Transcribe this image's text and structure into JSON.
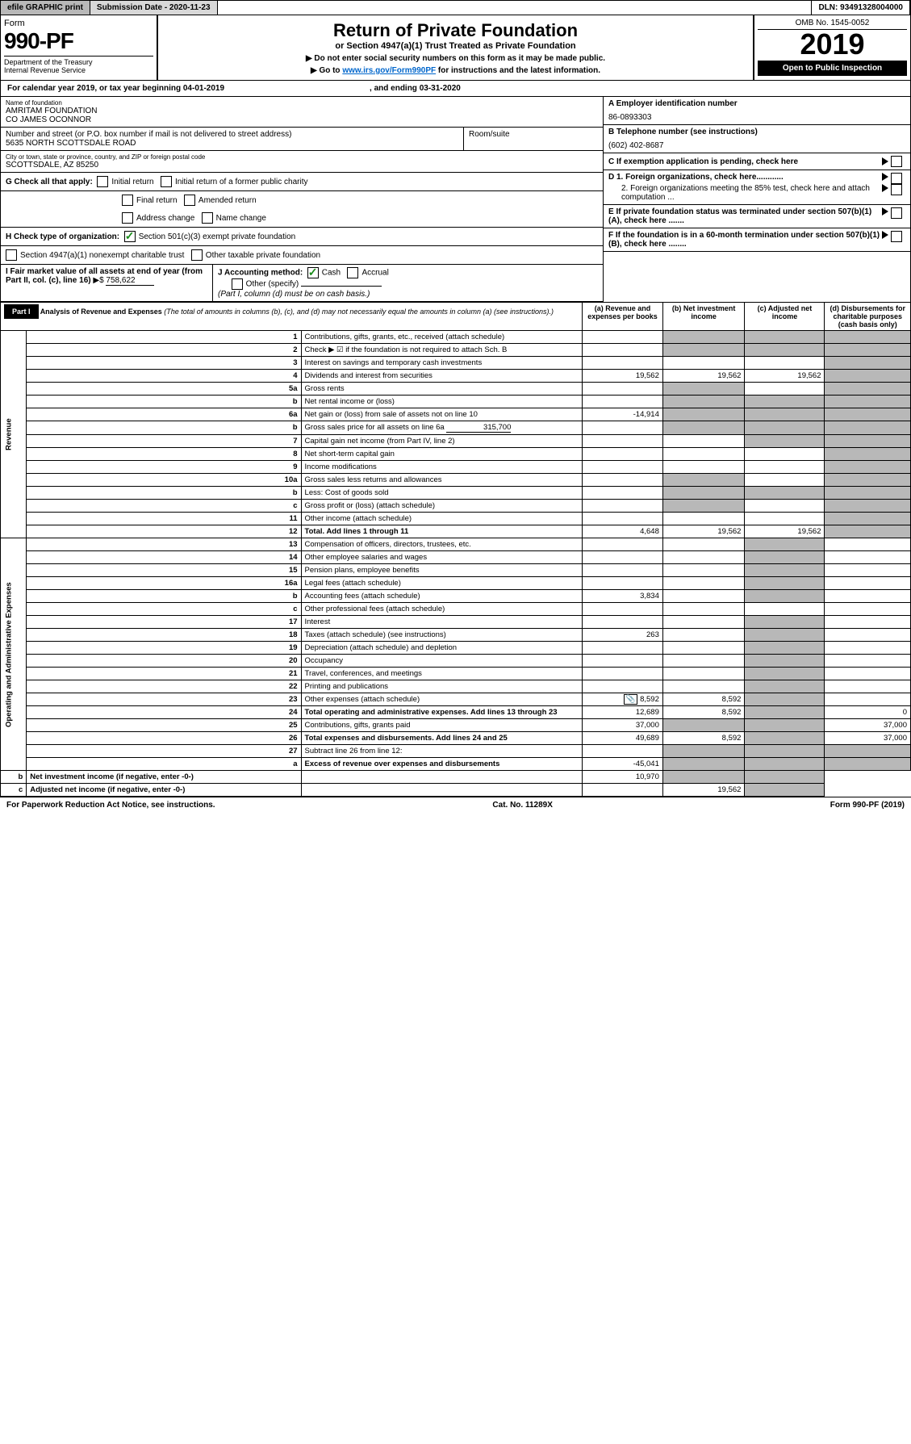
{
  "topbar": {
    "efile": "efile GRAPHIC print",
    "subdate_lbl": "Submission Date - 2020-11-23",
    "dln": "DLN: 93491328004000"
  },
  "header": {
    "form_lbl": "Form",
    "form_num": "990-PF",
    "dept": "Department of the Treasury",
    "irs": "Internal Revenue Service",
    "title": "Return of Private Foundation",
    "sub": "or Section 4947(a)(1) Trust Treated as Private Foundation",
    "note1": "▶ Do not enter social security numbers on this form as it may be made public.",
    "note2_pre": "▶ Go to ",
    "note2_link": "www.irs.gov/Form990PF",
    "note2_post": " for instructions and the latest information.",
    "omb": "OMB No. 1545-0052",
    "year": "2019",
    "open": "Open to Public Inspection"
  },
  "calyear": {
    "pre": "For calendar year 2019, or tax year beginning 04-01-2019",
    "post": ", and ending 03-31-2020"
  },
  "entity": {
    "name_lbl": "Name of foundation",
    "name": "AMRITAM FOUNDATION",
    "co": "CO JAMES OCONNOR",
    "addr_lbl": "Number and street (or P.O. box number if mail is not delivered to street address)",
    "addr": "5635 NORTH SCOTTSDALE ROAD",
    "room_lbl": "Room/suite",
    "city_lbl": "City or town, state or province, country, and ZIP or foreign postal code",
    "city": "SCOTTSDALE, AZ  85250",
    "ein_lbl": "A Employer identification number",
    "ein": "86-0893303",
    "tel_lbl": "B Telephone number (see instructions)",
    "tel": "(602) 402-8687",
    "c": "C If exemption application is pending, check here",
    "d1": "D 1. Foreign organizations, check here............",
    "d2": "2. Foreign organizations meeting the 85% test, check here and attach computation ...",
    "e": "E  If private foundation status was terminated under section 507(b)(1)(A), check here .......",
    "f": "F  If the foundation is in a 60-month termination under section 507(b)(1)(B), check here ........"
  },
  "g": {
    "lbl": "G Check all that apply:",
    "initial": "Initial return",
    "initial_pub": "Initial return of a former public charity",
    "final": "Final return",
    "amended": "Amended return",
    "addr": "Address change",
    "name": "Name change"
  },
  "h": {
    "lbl": "H Check type of organization:",
    "s501": "Section 501(c)(3) exempt private foundation",
    "s4947": "Section 4947(a)(1) nonexempt charitable trust",
    "other": "Other taxable private foundation"
  },
  "i": {
    "lbl": "I Fair market value of all assets at end of year (from Part II, col. (c), line 16)",
    "arrow": "▶$",
    "val": "758,622"
  },
  "j": {
    "lbl": "J Accounting method:",
    "cash": "Cash",
    "accrual": "Accrual",
    "other": "Other (specify)",
    "note": "(Part I, column (d) must be on cash basis.)"
  },
  "part1": {
    "hdr": "Part I",
    "title": "Analysis of Revenue and Expenses",
    "note": "(The total of amounts in columns (b), (c), and (d) may not necessarily equal the amounts in column (a) (see instructions).)",
    "cols": {
      "a": "(a)   Revenue and expenses per books",
      "b": "(b)  Net investment income",
      "c": "(c)  Adjusted net income",
      "d": "(d)  Disbursements for charitable purposes (cash basis only)"
    }
  },
  "sections": {
    "rev": "Revenue",
    "exp": "Operating and Administrative Expenses"
  },
  "rows": [
    {
      "n": "1",
      "d": "Contributions, gifts, grants, etc., received (attach schedule)"
    },
    {
      "n": "2",
      "d": "Check ▶ ☑ if the foundation is not required to attach Sch. B"
    },
    {
      "n": "3",
      "d": "Interest on savings and temporary cash investments"
    },
    {
      "n": "4",
      "d": "Dividends and interest from securities",
      "a": "19,562",
      "b": "19,562",
      "c": "19,562"
    },
    {
      "n": "5a",
      "d": "Gross rents"
    },
    {
      "n": "b",
      "d": "Net rental income or (loss)"
    },
    {
      "n": "6a",
      "d": "Net gain or (loss) from sale of assets not on line 10",
      "a": "-14,914"
    },
    {
      "n": "b",
      "d": "Gross sales price for all assets on line 6a",
      "inline": "315,700"
    },
    {
      "n": "7",
      "d": "Capital gain net income (from Part IV, line 2)"
    },
    {
      "n": "8",
      "d": "Net short-term capital gain"
    },
    {
      "n": "9",
      "d": "Income modifications"
    },
    {
      "n": "10a",
      "d": "Gross sales less returns and allowances"
    },
    {
      "n": "b",
      "d": "Less: Cost of goods sold"
    },
    {
      "n": "c",
      "d": "Gross profit or (loss) (attach schedule)"
    },
    {
      "n": "11",
      "d": "Other income (attach schedule)"
    },
    {
      "n": "12",
      "d": "Total. Add lines 1 through 11",
      "a": "4,648",
      "b": "19,562",
      "c": "19,562",
      "bold": true
    },
    {
      "n": "13",
      "d": "Compensation of officers, directors, trustees, etc."
    },
    {
      "n": "14",
      "d": "Other employee salaries and wages"
    },
    {
      "n": "15",
      "d": "Pension plans, employee benefits"
    },
    {
      "n": "16a",
      "d": "Legal fees (attach schedule)"
    },
    {
      "n": "b",
      "d": "Accounting fees (attach schedule)",
      "a": "3,834"
    },
    {
      "n": "c",
      "d": "Other professional fees (attach schedule)"
    },
    {
      "n": "17",
      "d": "Interest"
    },
    {
      "n": "18",
      "d": "Taxes (attach schedule) (see instructions)",
      "a": "263"
    },
    {
      "n": "19",
      "d": "Depreciation (attach schedule) and depletion"
    },
    {
      "n": "20",
      "d": "Occupancy"
    },
    {
      "n": "21",
      "d": "Travel, conferences, and meetings"
    },
    {
      "n": "22",
      "d": "Printing and publications"
    },
    {
      "n": "23",
      "d": "Other expenses (attach schedule)",
      "a": "8,592",
      "b": "8,592",
      "icon": true
    },
    {
      "n": "24",
      "d": "Total operating and administrative expenses. Add lines 13 through 23",
      "a": "12,689",
      "b": "8,592",
      "dd": "0",
      "bold": true
    },
    {
      "n": "25",
      "d": "Contributions, gifts, grants paid",
      "a": "37,000",
      "dd": "37,000"
    },
    {
      "n": "26",
      "d": "Total expenses and disbursements. Add lines 24 and 25",
      "a": "49,689",
      "b": "8,592",
      "dd": "37,000",
      "bold": true
    },
    {
      "n": "27",
      "d": "Subtract line 26 from line 12:"
    },
    {
      "n": "a",
      "d": "Excess of revenue over expenses and disbursements",
      "a": "-45,041",
      "bold": true
    },
    {
      "n": "b",
      "d": "Net investment income (if negative, enter -0-)",
      "b": "10,970",
      "bold": true
    },
    {
      "n": "c",
      "d": "Adjusted net income (if negative, enter -0-)",
      "c": "19,562",
      "bold": true
    }
  ],
  "footer": {
    "left": "For Paperwork Reduction Act Notice, see instructions.",
    "mid": "Cat. No. 11289X",
    "right": "Form 990-PF (2019)"
  }
}
